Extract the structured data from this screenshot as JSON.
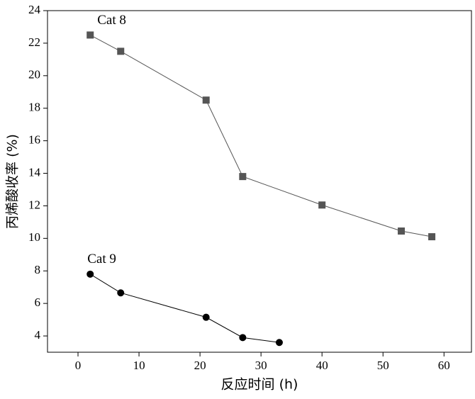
{
  "chart_data": {
    "type": "line",
    "x_label": "反应时间 (h)",
    "y_label": "丙烯酸收率 (%)",
    "xlim": [
      -5,
      64.5
    ],
    "xticks": [
      0,
      10,
      20,
      30,
      40,
      50,
      60
    ],
    "ylim": [
      3,
      24
    ],
    "yticks": [
      4,
      6,
      8,
      10,
      12,
      14,
      16,
      18,
      20,
      22,
      24
    ],
    "series": [
      {
        "name": "Cat 8",
        "color": "#555555",
        "marker": "square",
        "x": [
          2,
          7,
          21,
          27,
          40,
          53,
          58
        ],
        "values": [
          22.5,
          21.5,
          18.5,
          13.8,
          12.05,
          10.45,
          10.1
        ]
      },
      {
        "name": "Cat 9",
        "color": "#000000",
        "marker": "circle",
        "x": [
          2,
          7,
          21,
          27,
          33
        ],
        "values": [
          7.8,
          6.65,
          5.15,
          3.9,
          3.6
        ]
      }
    ]
  }
}
